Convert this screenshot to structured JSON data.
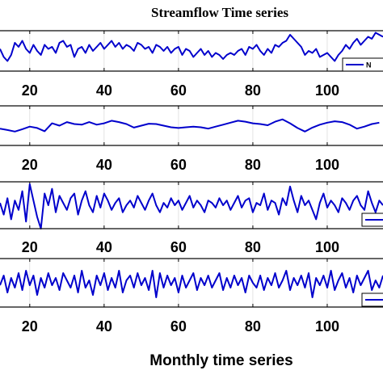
{
  "chart_data": {
    "type": "line",
    "title": "Streamflow Time series",
    "xlabel": "Monthly time series",
    "x_ticks": [
      20,
      40,
      60,
      80,
      100
    ],
    "xlim": [
      12,
      115
    ],
    "grid": true,
    "line_color": "#0000cc",
    "panels": [
      {
        "legend_label": "N",
        "legend_label_visible": "N",
        "ylim": [
          -1,
          1
        ],
        "x": [
          12,
          13,
          14,
          15,
          16,
          17,
          18,
          19,
          20,
          21,
          22,
          23,
          24,
          25,
          26,
          27,
          28,
          29,
          30,
          31,
          32,
          33,
          34,
          35,
          36,
          37,
          38,
          39,
          40,
          41,
          42,
          43,
          44,
          45,
          46,
          47,
          48,
          49,
          50,
          51,
          52,
          53,
          54,
          55,
          56,
          57,
          58,
          59,
          60,
          61,
          62,
          63,
          64,
          65,
          66,
          67,
          68,
          69,
          70,
          71,
          72,
          73,
          74,
          75,
          76,
          77,
          78,
          79,
          80,
          81,
          82,
          83,
          84,
          85,
          86,
          87,
          88,
          89,
          90,
          91,
          92,
          93,
          94,
          95,
          96,
          97,
          98,
          99,
          100,
          101,
          102,
          103,
          104,
          105,
          106,
          107,
          108,
          109,
          110,
          111,
          112,
          113,
          114,
          115
        ],
        "values": [
          0.1,
          -0.3,
          -0.5,
          -0.2,
          0.4,
          0.2,
          0.5,
          0.1,
          -0.1,
          0.3,
          0.0,
          -0.2,
          0.3,
          0.1,
          0.2,
          -0.1,
          0.4,
          0.5,
          0.2,
          0.3,
          -0.3,
          0.1,
          0.2,
          -0.1,
          0.3,
          0.0,
          0.2,
          0.4,
          0.1,
          0.3,
          0.5,
          0.2,
          0.4,
          0.1,
          0.3,
          0.2,
          0.0,
          0.4,
          0.3,
          0.1,
          0.2,
          -0.1,
          0.3,
          0.2,
          0.0,
          0.2,
          -0.1,
          0.1,
          0.2,
          -0.2,
          0.1,
          0.0,
          -0.3,
          -0.1,
          0.1,
          -0.2,
          0.0,
          -0.3,
          -0.1,
          -0.2,
          -0.4,
          -0.2,
          -0.1,
          -0.2,
          0.0,
          0.1,
          -0.2,
          0.2,
          0.1,
          0.3,
          0.0,
          -0.2,
          0.1,
          -0.1,
          0.3,
          0.2,
          0.4,
          0.5,
          0.8,
          0.6,
          0.4,
          0.2,
          -0.2,
          0.0,
          -0.1,
          0.1,
          -0.3,
          -0.2,
          -0.1,
          -0.3,
          -0.5,
          -0.2,
          0.0,
          0.3,
          0.1,
          0.4,
          0.6,
          0.3,
          0.5,
          0.7,
          0.6,
          0.9,
          0.8,
          0.7
        ]
      },
      {
        "legend_label": "",
        "legend_label_visible": "",
        "ylim": [
          -1,
          1
        ],
        "x": [
          12,
          14,
          16,
          18,
          20,
          22,
          24,
          26,
          28,
          30,
          32,
          34,
          36,
          38,
          40,
          42,
          44,
          46,
          48,
          50,
          52,
          54,
          56,
          58,
          60,
          62,
          64,
          66,
          68,
          70,
          72,
          74,
          76,
          78,
          80,
          82,
          84,
          86,
          88,
          90,
          92,
          94,
          96,
          98,
          100,
          102,
          104,
          106,
          108,
          110,
          112,
          114
        ],
        "values": [
          -0.15,
          -0.22,
          -0.3,
          -0.18,
          -0.05,
          -0.12,
          -0.28,
          0.12,
          0.0,
          0.18,
          0.08,
          0.05,
          0.18,
          0.05,
          0.12,
          0.25,
          0.18,
          0.08,
          -0.1,
          0.0,
          0.1,
          0.08,
          0.0,
          -0.08,
          -0.12,
          -0.08,
          -0.05,
          -0.08,
          -0.15,
          -0.05,
          0.05,
          0.15,
          0.25,
          0.2,
          0.12,
          0.08,
          0.02,
          0.2,
          0.32,
          0.12,
          -0.12,
          -0.3,
          -0.1,
          0.05,
          0.15,
          0.22,
          0.18,
          0.05,
          -0.15,
          -0.05,
          0.08,
          0.15
        ]
      },
      {
        "legend_label": "",
        "legend_label_visible": "",
        "ylim": [
          -1,
          1
        ],
        "x": [
          12,
          13,
          14,
          15,
          16,
          17,
          18,
          19,
          20,
          21,
          22,
          23,
          24,
          25,
          26,
          27,
          28,
          29,
          30,
          31,
          32,
          33,
          34,
          35,
          36,
          37,
          38,
          39,
          40,
          41,
          42,
          43,
          44,
          45,
          46,
          47,
          48,
          49,
          50,
          51,
          52,
          53,
          54,
          55,
          56,
          57,
          58,
          59,
          60,
          61,
          62,
          63,
          64,
          65,
          66,
          67,
          68,
          69,
          70,
          71,
          72,
          73,
          74,
          75,
          76,
          77,
          78,
          79,
          80,
          81,
          82,
          83,
          84,
          85,
          86,
          87,
          88,
          89,
          90,
          91,
          92,
          93,
          94,
          95,
          96,
          97,
          98,
          99,
          100,
          101,
          102,
          103,
          104,
          105,
          106,
          107,
          108,
          109,
          110,
          111,
          112,
          113,
          114,
          115
        ],
        "values": [
          0.1,
          -0.4,
          0.3,
          -0.6,
          0.2,
          -0.2,
          0.6,
          -0.7,
          0.9,
          0.2,
          -0.5,
          -1.0,
          0.5,
          0.0,
          0.7,
          -0.3,
          0.4,
          0.1,
          -0.2,
          0.3,
          0.5,
          -0.4,
          0.2,
          0.6,
          0.0,
          -0.3,
          0.4,
          -0.1,
          0.5,
          0.2,
          -0.2,
          0.1,
          0.3,
          -0.3,
          0.0,
          0.2,
          -0.1,
          0.4,
          0.1,
          -0.2,
          0.2,
          0.5,
          0.0,
          -0.3,
          0.1,
          -0.1,
          0.3,
          0.0,
          0.2,
          -0.2,
          0.1,
          0.4,
          -0.1,
          0.2,
          0.0,
          -0.3,
          0.2,
          0.1,
          -0.1,
          0.3,
          0.0,
          0.2,
          -0.2,
          0.1,
          0.4,
          -0.1,
          0.2,
          0.3,
          -0.3,
          0.1,
          0.0,
          0.5,
          -0.2,
          0.2,
          0.1,
          -0.4,
          0.3,
          0.0,
          0.8,
          0.2,
          -0.3,
          0.4,
          0.0,
          0.2,
          -0.2,
          -0.6,
          0.1,
          0.5,
          -0.1,
          0.2,
          0.0,
          -0.3,
          0.3,
          0.1,
          -0.2,
          0.2,
          0.4,
          0.0,
          -0.2,
          0.6,
          0.1,
          -0.3,
          0.2,
          0.0
        ]
      },
      {
        "legend_label": "",
        "legend_label_visible": "",
        "ylim": [
          -1,
          1
        ],
        "x": [
          12,
          13,
          14,
          15,
          16,
          17,
          18,
          19,
          20,
          21,
          22,
          23,
          24,
          25,
          26,
          27,
          28,
          29,
          30,
          31,
          32,
          33,
          34,
          35,
          36,
          37,
          38,
          39,
          40,
          41,
          42,
          43,
          44,
          45,
          46,
          47,
          48,
          49,
          50,
          51,
          52,
          53,
          54,
          55,
          56,
          57,
          58,
          59,
          60,
          61,
          62,
          63,
          64,
          65,
          66,
          67,
          68,
          69,
          70,
          71,
          72,
          73,
          74,
          75,
          76,
          77,
          78,
          79,
          80,
          81,
          82,
          83,
          84,
          85,
          86,
          87,
          88,
          89,
          90,
          91,
          92,
          93,
          94,
          95,
          96,
          97,
          98,
          99,
          100,
          101,
          102,
          103,
          104,
          105,
          106,
          107,
          108,
          109,
          110,
          111,
          112,
          113,
          114,
          115
        ],
        "values": [
          -0.1,
          0.3,
          -0.4,
          0.2,
          -0.2,
          0.4,
          -0.3,
          0.5,
          -0.1,
          0.3,
          -0.5,
          0.2,
          -0.2,
          0.4,
          -0.1,
          0.2,
          -0.3,
          0.4,
          0.1,
          -0.2,
          0.3,
          -0.4,
          0.5,
          -0.2,
          0.1,
          -0.5,
          0.3,
          -0.1,
          0.4,
          -0.3,
          0.2,
          -0.2,
          0.5,
          -0.4,
          0.1,
          0.3,
          -0.2,
          0.4,
          -0.1,
          0.2,
          -0.3,
          0.5,
          -0.6,
          0.4,
          -0.2,
          0.3,
          -0.1,
          0.2,
          -0.4,
          0.3,
          -0.2,
          0.1,
          0.4,
          -0.3,
          0.2,
          -0.1,
          0.3,
          -0.2,
          0.1,
          0.4,
          -0.3,
          0.2,
          -0.2,
          0.3,
          -0.1,
          0.2,
          -0.4,
          0.3,
          0.0,
          -0.2,
          0.3,
          -0.3,
          0.2,
          -0.1,
          0.4,
          -0.2,
          0.1,
          0.5,
          -0.3,
          0.2,
          -0.1,
          0.3,
          -0.2,
          0.4,
          -0.6,
          0.2,
          -0.1,
          0.3,
          -0.2,
          0.5,
          -0.3,
          0.1,
          0.4,
          -0.2,
          0.2,
          -0.4,
          0.3,
          -0.1,
          0.2,
          0.5,
          -0.3,
          0.1,
          -0.2,
          0.3
        ]
      }
    ]
  }
}
